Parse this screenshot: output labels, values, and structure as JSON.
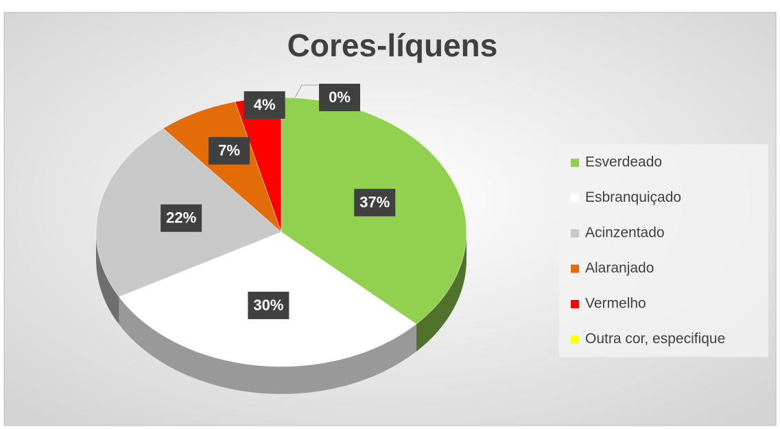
{
  "chart_data": {
    "type": "pie",
    "title": "Cores-líquens",
    "categories": [
      "Esverdeado",
      "Esbranquiçado",
      "Acinzentado",
      "Alaranjado",
      "Vermelho",
      "Outra cor, especifique"
    ],
    "values": [
      37,
      30,
      22,
      7,
      4,
      0
    ],
    "value_labels": [
      "37%",
      "30%",
      "22%",
      "7%",
      "4%",
      "0%"
    ],
    "colors": [
      "#92d050",
      "#ffffff",
      "#c8c8c8",
      "#e36c09",
      "#ff0000",
      "#ffff00"
    ],
    "legend": "right"
  }
}
